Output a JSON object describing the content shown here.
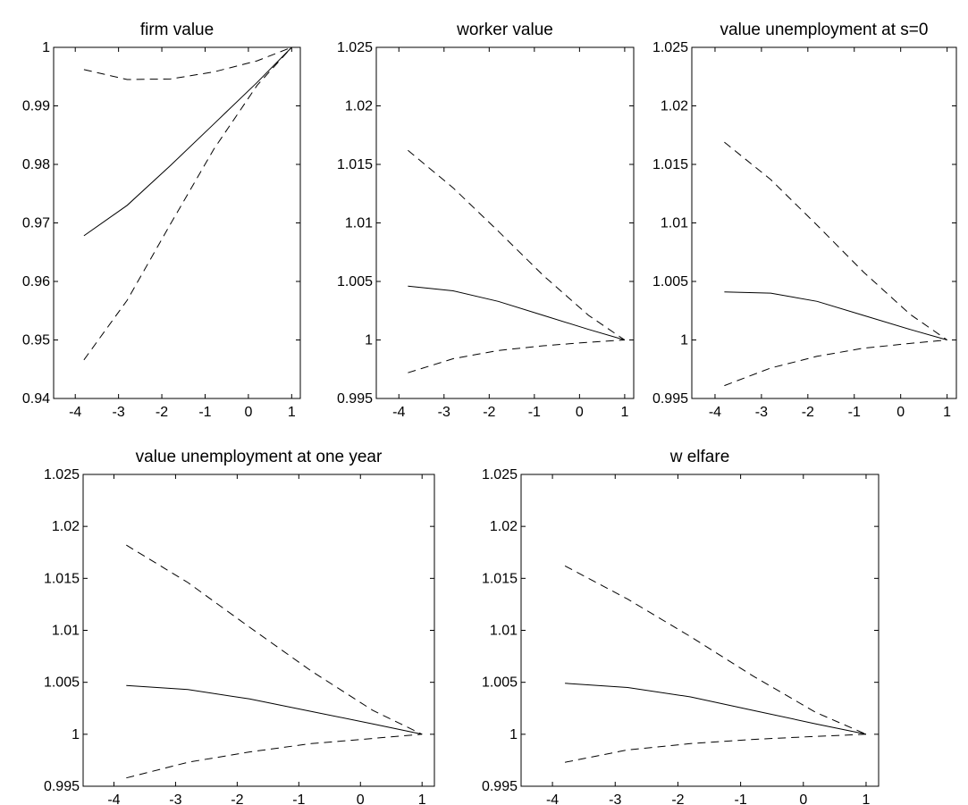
{
  "chart_data": [
    {
      "type": "line",
      "title": "firm value",
      "xlabel": "",
      "ylabel": "",
      "x": [
        -3.8,
        -2.8,
        -1.8,
        -0.8,
        0.2,
        1
      ],
      "xlim": [
        -4.5,
        1.2
      ],
      "ylim": [
        0.94,
        1
      ],
      "xticks": [
        -4,
        -3,
        -2,
        -1,
        0,
        1
      ],
      "xtick_labels": [
        "-4",
        "-3",
        "-2",
        "-1",
        "0",
        "1"
      ],
      "yticks": [
        0.94,
        0.95,
        0.96,
        0.97,
        0.98,
        0.99,
        1
      ],
      "ytick_labels": [
        "0.94",
        "0.95",
        "0.96",
        "0.97",
        "0.98",
        "0.99",
        "1"
      ],
      "grid": false,
      "series": [
        {
          "style": "solid",
          "values": [
            0.9678,
            0.973,
            0.9798,
            0.9869,
            0.994,
            1.0
          ]
        },
        {
          "style": "dashed",
          "values": [
            0.9962,
            0.9945,
            0.9946,
            0.9958,
            0.9977,
            1.0
          ]
        },
        {
          "style": "dashed",
          "values": [
            0.9466,
            0.9568,
            0.9698,
            0.9826,
            0.9935,
            1.0
          ]
        }
      ]
    },
    {
      "type": "line",
      "title": "worker value",
      "xlabel": "",
      "ylabel": "",
      "x": [
        -3.8,
        -2.8,
        -1.8,
        -0.8,
        0.2,
        1
      ],
      "xlim": [
        -4.5,
        1.2
      ],
      "ylim": [
        0.995,
        1.025
      ],
      "xticks": [
        -4,
        -3,
        -2,
        -1,
        0,
        1
      ],
      "xtick_labels": [
        "-4",
        "-3",
        "-2",
        "-1",
        "0",
        "1"
      ],
      "yticks": [
        0.995,
        1,
        1.005,
        1.01,
        1.015,
        1.02,
        1.025
      ],
      "ytick_labels": [
        "0.995",
        "1",
        "1.005",
        "1.01",
        "1.015",
        "1.02",
        "1.025"
      ],
      "grid": false,
      "series": [
        {
          "style": "solid",
          "values": [
            1.0046,
            1.0042,
            1.0033,
            1.0021,
            1.0009,
            1.0
          ]
        },
        {
          "style": "dashed",
          "values": [
            1.0162,
            1.013,
            1.0093,
            1.0055,
            1.0021,
            1.0
          ]
        },
        {
          "style": "dashed",
          "values": [
            0.9972,
            0.9984,
            0.9991,
            0.9995,
            0.9998,
            1.0
          ]
        }
      ]
    },
    {
      "type": "line",
      "title": "value unemployment at s=0",
      "xlabel": "",
      "ylabel": "",
      "x": [
        -3.8,
        -2.8,
        -1.8,
        -0.8,
        0.2,
        1
      ],
      "xlim": [
        -4.5,
        1.2
      ],
      "ylim": [
        0.995,
        1.025
      ],
      "xticks": [
        -4,
        -3,
        -2,
        -1,
        0,
        1
      ],
      "xtick_labels": [
        "-4",
        "-3",
        "-2",
        "-1",
        "0",
        "1"
      ],
      "yticks": [
        0.995,
        1,
        1.005,
        1.01,
        1.015,
        1.02,
        1.025
      ],
      "ytick_labels": [
        "0.995",
        "1",
        "1.005",
        "1.01",
        "1.015",
        "1.02",
        "1.025"
      ],
      "grid": false,
      "series": [
        {
          "style": "solid",
          "values": [
            1.0041,
            1.004,
            1.0033,
            1.0021,
            1.0009,
            1.0
          ]
        },
        {
          "style": "dashed",
          "values": [
            1.0169,
            1.0137,
            1.0098,
            1.0058,
            1.0022,
            1.0
          ]
        },
        {
          "style": "dashed",
          "values": [
            0.9961,
            0.9976,
            0.9986,
            0.9993,
            0.9997,
            1.0
          ]
        }
      ]
    },
    {
      "type": "line",
      "title": "value unemployment at one year",
      "xlabel": "",
      "ylabel": "",
      "x": [
        -3.8,
        -2.8,
        -1.8,
        -0.8,
        0.2,
        1
      ],
      "xlim": [
        -4.5,
        1.2
      ],
      "ylim": [
        0.995,
        1.025
      ],
      "xticks": [
        -4,
        -3,
        -2,
        -1,
        0,
        1
      ],
      "xtick_labels": [
        "-4",
        "-3",
        "-2",
        "-1",
        "0",
        "1"
      ],
      "yticks": [
        0.995,
        1,
        1.005,
        1.01,
        1.015,
        1.02,
        1.025
      ],
      "ytick_labels": [
        "0.995",
        "1",
        "1.005",
        "1.01",
        "1.015",
        "1.02",
        "1.025"
      ],
      "grid": false,
      "series": [
        {
          "style": "solid",
          "values": [
            1.0047,
            1.0043,
            1.0034,
            1.0022,
            1.001,
            1.0
          ]
        },
        {
          "style": "dashed",
          "values": [
            1.0182,
            1.0146,
            1.0103,
            1.0061,
            1.0023,
            1.0
          ]
        },
        {
          "style": "dashed",
          "values": [
            0.9958,
            0.9973,
            0.9983,
            0.9991,
            0.9996,
            1.0
          ]
        }
      ]
    },
    {
      "type": "line",
      "title": "w elfare",
      "xlabel": "",
      "ylabel": "",
      "x": [
        -3.8,
        -2.8,
        -1.8,
        -0.8,
        0.2,
        1
      ],
      "xlim": [
        -4.5,
        1.2
      ],
      "ylim": [
        0.995,
        1.025
      ],
      "xticks": [
        -4,
        -3,
        -2,
        -1,
        0,
        1
      ],
      "xtick_labels": [
        "-4",
        "-3",
        "-2",
        "-1",
        "0",
        "1"
      ],
      "yticks": [
        0.995,
        1,
        1.005,
        1.01,
        1.015,
        1.02,
        1.025
      ],
      "ytick_labels": [
        "0.995",
        "1",
        "1.005",
        "1.01",
        "1.015",
        "1.02",
        "1.025"
      ],
      "grid": false,
      "series": [
        {
          "style": "solid",
          "values": [
            1.0049,
            1.0045,
            1.0036,
            1.0023,
            1.001,
            1.0
          ]
        },
        {
          "style": "dashed",
          "values": [
            1.0162,
            1.013,
            1.0094,
            1.0056,
            1.0021,
            1.0
          ]
        },
        {
          "style": "dashed",
          "values": [
            0.9973,
            0.9985,
            0.9991,
            0.9995,
            0.9998,
            1.0
          ]
        }
      ]
    }
  ]
}
